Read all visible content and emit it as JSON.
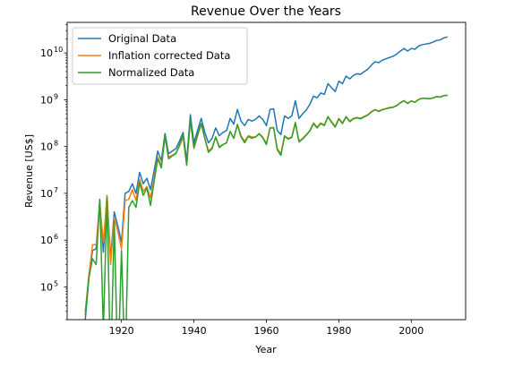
{
  "chart_data": {
    "type": "line",
    "title": "Revenue Over the Years",
    "xlabel": "Year",
    "ylabel": "Revenue [US$]",
    "xlim": [
      1905,
      2015
    ],
    "ylim": [
      20000,
      45000000000
    ],
    "yscale": "log",
    "x_ticks": [
      1920,
      1940,
      1960,
      1980,
      2000
    ],
    "x_tick_labels": [
      "1920",
      "1940",
      "1960",
      "1980",
      "2000"
    ],
    "y_ticks": [
      100000,
      1000000,
      10000000,
      100000000,
      1000000000,
      10000000000
    ],
    "y_tick_labels": [
      {
        "base": "10",
        "exp": "5"
      },
      {
        "base": "10",
        "exp": "6"
      },
      {
        "base": "10",
        "exp": "7"
      },
      {
        "base": "10",
        "exp": "8"
      },
      {
        "base": "10",
        "exp": "9"
      },
      {
        "base": "10",
        "exp": "10"
      }
    ],
    "grid": false,
    "legend_position": "top-left",
    "series": [
      {
        "name": "Original Data",
        "color": "#1f77b4",
        "x": [
          1910,
          1911,
          1912,
          1913,
          1914,
          1915,
          1916,
          1917,
          1918,
          1919,
          1920,
          1921,
          1922,
          1923,
          1924,
          1925,
          1926,
          1927,
          1928,
          1929,
          1930,
          1931,
          1932,
          1933,
          1934,
          1935,
          1936,
          1937,
          1938,
          1939,
          1940,
          1941,
          1942,
          1943,
          1944,
          1945,
          1946,
          1947,
          1948,
          1949,
          1950,
          1951,
          1952,
          1953,
          1954,
          1955,
          1956,
          1957,
          1958,
          1959,
          1960,
          1961,
          1962,
          1963,
          1964,
          1965,
          1966,
          1967,
          1968,
          1969,
          1970,
          1971,
          1972,
          1973,
          1974,
          1975,
          1976,
          1977,
          1978,
          1979,
          1980,
          1981,
          1982,
          1983,
          1984,
          1985,
          1986,
          1987,
          1988,
          1989,
          1990,
          1991,
          1992,
          1993,
          1994,
          1995,
          1996,
          1997,
          1998,
          1999,
          2000,
          2001,
          2002,
          2003,
          2004,
          2005,
          2006,
          2007,
          2008,
          2009,
          2010
        ],
        "values": [
          20000,
          150000,
          600000,
          650000,
          7000000,
          550000,
          9000000,
          400000,
          4000000,
          2000000,
          900000,
          10000000,
          11000000,
          16000000,
          10000000,
          28000000,
          16000000,
          21000000,
          12000000,
          30000000,
          80000000,
          50000000,
          190000000,
          70000000,
          80000000,
          90000000,
          130000000,
          200000000,
          50000000,
          480000000,
          120000000,
          220000000,
          400000000,
          200000000,
          120000000,
          150000000,
          250000000,
          170000000,
          200000000,
          220000000,
          400000000,
          300000000,
          620000000,
          350000000,
          280000000,
          380000000,
          350000000,
          380000000,
          450000000,
          380000000,
          280000000,
          620000000,
          640000000,
          220000000,
          180000000,
          450000000,
          400000000,
          450000000,
          950000000,
          400000000,
          500000000,
          600000000,
          800000000,
          1200000000,
          1100000000,
          1400000000,
          1300000000,
          2200000000,
          1800000000,
          1500000000,
          2500000000,
          2200000000,
          3200000000,
          2800000000,
          3300000000,
          3600000000,
          3500000000,
          4000000000,
          4500000000,
          5500000000,
          6500000000,
          6200000000,
          7000000000,
          7500000000,
          8000000000,
          8500000000,
          9500000000,
          11000000000,
          12500000000,
          11000000000,
          12500000000,
          12000000000,
          14000000000,
          15000000000,
          15500000000,
          16000000000,
          17000000000,
          18500000000,
          19000000000,
          21000000000,
          22000000000
        ]
      },
      {
        "name": "Inflation corrected Data",
        "color": "#ff7f0e",
        "x": [
          1910,
          1911,
          1912,
          1913,
          1914,
          1915,
          1916,
          1917,
          1918,
          1919,
          1920,
          1921,
          1922,
          1923,
          1924,
          1925,
          1926,
          1927,
          1928,
          1929,
          1930,
          1931,
          1932,
          1933,
          1934,
          1935,
          1936,
          1937,
          1938,
          1939,
          1940,
          1941,
          1942,
          1943,
          1944,
          1945,
          1946,
          1947,
          1948,
          1949,
          1950,
          1951,
          1952,
          1953,
          1954,
          1955,
          1956,
          1957,
          1958,
          1959,
          1960,
          1961,
          1962,
          1963,
          1964,
          1965,
          1966,
          1967,
          1968,
          1969,
          1970,
          1971,
          1972,
          1973,
          1974,
          1975,
          1976,
          1977,
          1978,
          1979,
          1980,
          1981,
          1982,
          1983,
          1984,
          1985,
          1986,
          1987,
          1988,
          1989,
          1990,
          1991,
          1992,
          1993,
          1994,
          1995,
          1996,
          1997,
          1998,
          1999,
          2000,
          2001,
          2002,
          2003,
          2004,
          2005,
          2006,
          2007,
          2008,
          2009,
          2010
        ],
        "values": [
          30000,
          180000,
          800000,
          800000,
          6000000,
          900000,
          9000000,
          300000,
          3000000,
          1500000,
          650000,
          7000000,
          7500000,
          12000000,
          7000000,
          20000000,
          11000000,
          14000000,
          8000000,
          20000000,
          60000000,
          40000000,
          160000000,
          60000000,
          65000000,
          72000000,
          100000000,
          160000000,
          40000000,
          360000000,
          90000000,
          170000000,
          300000000,
          150000000,
          80000000,
          95000000,
          160000000,
          100000000,
          110000000,
          120000000,
          210000000,
          150000000,
          300000000,
          170000000,
          130000000,
          170000000,
          160000000,
          160000000,
          190000000,
          160000000,
          115000000,
          250000000,
          255000000,
          90000000,
          70000000,
          170000000,
          150000000,
          160000000,
          330000000,
          130000000,
          150000000,
          180000000,
          220000000,
          320000000,
          260000000,
          320000000,
          290000000,
          440000000,
          340000000,
          270000000,
          400000000,
          320000000,
          440000000,
          350000000,
          400000000,
          420000000,
          400000000,
          440000000,
          480000000,
          560000000,
          620000000,
          570000000,
          620000000,
          650000000,
          680000000,
          700000000,
          760000000,
          870000000,
          960000000,
          840000000,
          950000000,
          890000000,
          1020000000,
          1080000000,
          1080000000,
          1060000000,
          1100000000,
          1170000000,
          1150000000,
          1230000000,
          1250000000
        ]
      },
      {
        "name": "Normalized Data",
        "color": "#2ca02c",
        "x": [
          1910,
          1911,
          1912,
          1913,
          1914,
          1915,
          1916,
          1917,
          1918,
          1919,
          1920,
          1921,
          1922,
          1923,
          1924,
          1925,
          1926,
          1927,
          1928,
          1929,
          1930,
          1931,
          1932,
          1933,
          1934,
          1935,
          1936,
          1937,
          1938,
          1939,
          1940,
          1941,
          1942,
          1943,
          1944,
          1945,
          1946,
          1947,
          1948,
          1949,
          1950,
          1951,
          1952,
          1953,
          1954,
          1955,
          1956,
          1957,
          1958,
          1959,
          1960,
          1961,
          1962,
          1963,
          1964,
          1965,
          1966,
          1967,
          1968,
          1969,
          1970,
          1971,
          1972,
          1973,
          1974,
          1975,
          1976,
          1977,
          1978,
          1979,
          1980,
          1981,
          1982,
          1983,
          1984,
          1985,
          1986,
          1987,
          1988,
          1989,
          1990,
          1991,
          1992,
          1993,
          1994,
          1995,
          1996,
          1997,
          1998,
          1999,
          2000,
          2001,
          2002,
          2003,
          2004,
          2005,
          2006,
          2007,
          2008,
          2009,
          2010
        ],
        "values": [
          25000,
          160000,
          400000,
          300000,
          7500000,
          12000,
          8000000,
          1,
          2500000,
          1,
          600000,
          1,
          5000000,
          7000000,
          5000000,
          17000000,
          9000000,
          13000000,
          5500000,
          18000000,
          55000000,
          35000000,
          170000000,
          55000000,
          63000000,
          70000000,
          110000000,
          180000000,
          40000000,
          380000000,
          95000000,
          180000000,
          310000000,
          150000000,
          75000000,
          90000000,
          160000000,
          95000000,
          110000000,
          120000000,
          210000000,
          150000000,
          290000000,
          160000000,
          120000000,
          165000000,
          150000000,
          160000000,
          185000000,
          155000000,
          110000000,
          250000000,
          250000000,
          85000000,
          65000000,
          165000000,
          145000000,
          155000000,
          320000000,
          125000000,
          145000000,
          175000000,
          215000000,
          310000000,
          250000000,
          310000000,
          280000000,
          430000000,
          330000000,
          260000000,
          390000000,
          310000000,
          430000000,
          340000000,
          390000000,
          410000000,
          390000000,
          430000000,
          470000000,
          550000000,
          610000000,
          560000000,
          610000000,
          640000000,
          670000000,
          690000000,
          750000000,
          860000000,
          950000000,
          830000000,
          940000000,
          880000000,
          1010000000,
          1070000000,
          1070000000,
          1050000000,
          1090000000,
          1160000000,
          1140000000,
          1220000000,
          1240000000
        ]
      }
    ]
  }
}
